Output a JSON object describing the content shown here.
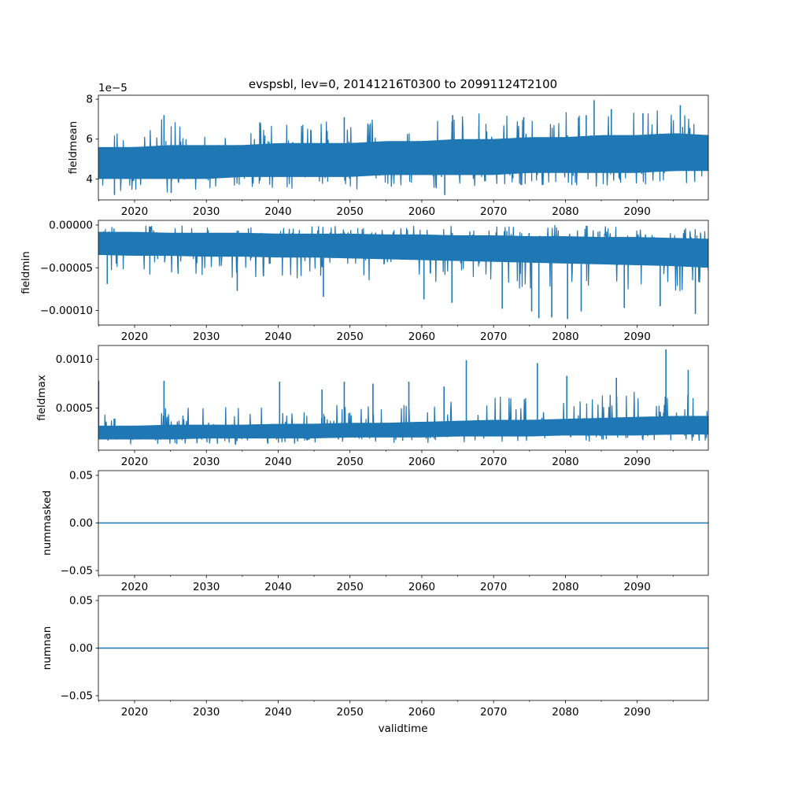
{
  "figure": {
    "title": "evspsbl, lev=0, 20141216T0300 to 20991124T2100",
    "xlabel": "validtime"
  },
  "colors": {
    "series": "#1f77b4",
    "axes": "#000000",
    "background": "#ffffff"
  },
  "chart_data": [
    {
      "type": "line",
      "name": "fieldmean",
      "ylabel": "fieldmean",
      "offset_text": "1e−5",
      "xlim": [
        2014.96,
        2099.9
      ],
      "ylim": [
        2.95e-05,
        8.2e-05
      ],
      "yticks": [
        4e-05,
        6e-05,
        8e-05
      ],
      "ytick_labels": [
        "4",
        "6",
        "8"
      ],
      "xticks": [
        2020,
        2030,
        2040,
        2050,
        2060,
        2070,
        2080,
        2090
      ],
      "xtick_labels": [
        "2020",
        "2030",
        "2040",
        "2050",
        "2060",
        "2070",
        "2080",
        "2090"
      ],
      "envelope": {
        "x": [
          2015,
          2020,
          2025,
          2030,
          2035,
          2040,
          2045,
          2050,
          2055,
          2060,
          2065,
          2070,
          2075,
          2080,
          2085,
          2090,
          2095,
          2099.9
        ],
        "upper": [
          6.6e-05,
          6.7e-05,
          7.1e-05,
          6.8e-05,
          6.9e-05,
          7e-05,
          6.9e-05,
          7.1e-05,
          7e-05,
          7.2e-05,
          7.3e-05,
          7.3e-05,
          7.4e-05,
          7.4e-05,
          7.5e-05,
          7.5e-05,
          7.6e-05,
          7.3e-05
        ],
        "lower": [
          3.3e-05,
          3.4e-05,
          3.3e-05,
          3.4e-05,
          3.5e-05,
          3.4e-05,
          3.5e-05,
          3.4e-05,
          3.5e-05,
          3.4e-05,
          3.5e-05,
          3.6e-05,
          3.6e-05,
          3.6e-05,
          3.6e-05,
          3.6e-05,
          3.7e-05,
          3.8e-05
        ],
        "core_upper": [
          5.6e-05,
          5.6e-05,
          5.7e-05,
          5.7e-05,
          5.7e-05,
          5.8e-05,
          5.8e-05,
          5.8e-05,
          5.9e-05,
          5.9e-05,
          6e-05,
          6e-05,
          6.1e-05,
          6.1e-05,
          6.2e-05,
          6.2e-05,
          6.3e-05,
          6.2e-05
        ],
        "core_lower": [
          4e-05,
          4e-05,
          4e-05,
          4e-05,
          4.1e-05,
          4.1e-05,
          4.1e-05,
          4.1e-05,
          4.2e-05,
          4.2e-05,
          4.2e-05,
          4.2e-05,
          4.3e-05,
          4.3e-05,
          4.3e-05,
          4.3e-05,
          4.4e-05,
          4.4e-05
        ]
      },
      "spikes": [
        {
          "x": 2084.0,
          "y": 7.95e-05
        },
        {
          "x": 2096.0,
          "y": 7.7e-05
        },
        {
          "x": 2086.4,
          "y": 7.5e-05
        },
        {
          "x": 2082.9,
          "y": 7.2e-05
        },
        {
          "x": 2090.8,
          "y": 7.3e-05
        },
        {
          "x": 2074.2,
          "y": 7.1e-05
        },
        {
          "x": 2064.3,
          "y": 7.2e-05
        },
        {
          "x": 2024.1,
          "y": 7.2e-05
        },
        {
          "x": 2049.2,
          "y": 7.1e-05
        },
        {
          "x": 2063.2,
          "y": 3.2e-05
        },
        {
          "x": 2017.2,
          "y": 3.2e-05
        },
        {
          "x": 2025.1,
          "y": 3.3e-05
        }
      ]
    },
    {
      "type": "line",
      "name": "fieldmin",
      "ylabel": "fieldmin",
      "xlim": [
        2014.96,
        2099.9
      ],
      "ylim": [
        -0.000117,
        5.5e-06
      ],
      "yticks": [
        0.0,
        -5e-05,
        -0.0001
      ],
      "ytick_labels": [
        "0.00000",
        "−0.00005",
        "−0.00010"
      ],
      "xticks": [
        2020,
        2030,
        2040,
        2050,
        2060,
        2070,
        2080,
        2090
      ],
      "xtick_labels": [
        "2020",
        "2030",
        "2040",
        "2050",
        "2060",
        "2070",
        "2080",
        "2090"
      ],
      "envelope": {
        "x": [
          2015,
          2020,
          2025,
          2030,
          2035,
          2040,
          2045,
          2050,
          2055,
          2060,
          2065,
          2070,
          2075,
          2080,
          2085,
          2090,
          2095,
          2099.9
        ],
        "upper": [
          0.0,
          0.0,
          0.0,
          0.0,
          0.0,
          0.0,
          0.0,
          0.0,
          0.0,
          0.0,
          0.0,
          0.0,
          0.0,
          0.0,
          -1e-06,
          -2e-06,
          -3e-06,
          -5e-06
        ],
        "lower": [
          -5.8e-05,
          -6e-05,
          -5.8e-05,
          -6e-05,
          -6.3e-05,
          -6.2e-05,
          -6.4e-05,
          -6.5e-05,
          -6.6e-05,
          -6.8e-05,
          -7e-05,
          -7.2e-05,
          -7.5e-05,
          -7.5e-05,
          -7.6e-05,
          -7.8e-05,
          -7.8e-05,
          -8.2e-05
        ],
        "core_upper": [
          -8e-06,
          -8e-06,
          -9e-06,
          -9e-06,
          -9e-06,
          -1e-05,
          -1e-05,
          -1e-05,
          -1.1e-05,
          -1.1e-05,
          -1.2e-05,
          -1.2e-05,
          -1.3e-05,
          -1.3e-05,
          -1.4e-05,
          -1.4e-05,
          -1.5e-05,
          -1.6e-05
        ],
        "core_lower": [
          -3.5e-05,
          -3.6e-05,
          -3.6e-05,
          -3.7e-05,
          -3.7e-05,
          -3.8e-05,
          -3.8e-05,
          -3.9e-05,
          -4e-05,
          -4.1e-05,
          -4.2e-05,
          -4.3e-05,
          -4.4e-05,
          -4.5e-05,
          -4.6e-05,
          -4.7e-05,
          -4.8e-05,
          -5e-05
        ]
      },
      "spikes": [
        {
          "x": 2016.2,
          "y": -6.9e-05
        },
        {
          "x": 2034.3,
          "y": -7.7e-05
        },
        {
          "x": 2046.3,
          "y": -8.4e-05
        },
        {
          "x": 2060.3,
          "y": -8.7e-05
        },
        {
          "x": 2064.2,
          "y": -9.1e-05
        },
        {
          "x": 2071.2,
          "y": -9.8e-05
        },
        {
          "x": 2075.3,
          "y": -0.000101
        },
        {
          "x": 2076.3,
          "y": -0.000109
        },
        {
          "x": 2078.1,
          "y": -0.000108
        },
        {
          "x": 2080.3,
          "y": -0.00011
        },
        {
          "x": 2082.2,
          "y": -0.000101
        },
        {
          "x": 2088.2,
          "y": -9.7e-05
        },
        {
          "x": 2093.2,
          "y": -9.5e-05
        },
        {
          "x": 2098.1,
          "y": -0.000104
        }
      ]
    },
    {
      "type": "line",
      "name": "fieldmax",
      "ylabel": "fieldmax",
      "xlim": [
        2014.96,
        2099.9
      ],
      "ylim": [
        7e-05,
        0.00114
      ],
      "yticks": [
        0.0005,
        0.001
      ],
      "ytick_labels": [
        "0.0005",
        "0.0010"
      ],
      "xticks": [
        2020,
        2030,
        2040,
        2050,
        2060,
        2070,
        2080,
        2090
      ],
      "xtick_labels": [
        "2020",
        "2030",
        "2040",
        "2050",
        "2060",
        "2070",
        "2080",
        "2090"
      ],
      "envelope": {
        "x": [
          2015,
          2020,
          2025,
          2030,
          2035,
          2040,
          2045,
          2050,
          2055,
          2060,
          2065,
          2070,
          2075,
          2080,
          2085,
          2090,
          2095,
          2099.9
        ],
        "upper": [
          0.00048,
          0.0005,
          0.00052,
          0.00051,
          0.00052,
          0.00053,
          0.00054,
          0.00055,
          0.00057,
          0.00058,
          0.0006,
          0.00062,
          0.00064,
          0.00063,
          0.00066,
          0.00067,
          0.00068,
          0.0006
        ],
        "lower": [
          0.000125,
          0.000125,
          0.00013,
          0.00013,
          0.00013,
          0.000135,
          0.000135,
          0.00014,
          0.00014,
          0.00014,
          0.000145,
          0.000145,
          0.00015,
          0.00015,
          0.000155,
          0.000155,
          0.00016,
          0.00016
        ],
        "core_upper": [
          0.00032,
          0.00032,
          0.00033,
          0.00033,
          0.00033,
          0.00034,
          0.00034,
          0.00035,
          0.00035,
          0.00036,
          0.00037,
          0.00038,
          0.00038,
          0.00039,
          0.0004,
          0.00041,
          0.00042,
          0.00042
        ],
        "core_lower": [
          0.00018,
          0.00018,
          0.00018,
          0.00019,
          0.00019,
          0.00019,
          0.00019,
          0.0002,
          0.0002,
          0.0002,
          0.00021,
          0.00021,
          0.00021,
          0.00022,
          0.00022,
          0.00022,
          0.00023,
          0.00023
        ]
      },
      "spikes": [
        {
          "x": 2015.0,
          "y": 0.00078
        },
        {
          "x": 2024.1,
          "y": 0.00078
        },
        {
          "x": 2040.2,
          "y": 0.00077
        },
        {
          "x": 2046.1,
          "y": 0.00069
        },
        {
          "x": 2049.2,
          "y": 0.00077
        },
        {
          "x": 2053.2,
          "y": 0.00075
        },
        {
          "x": 2058.2,
          "y": 0.00077
        },
        {
          "x": 2063.1,
          "y": 0.00072
        },
        {
          "x": 2066.2,
          "y": 0.00099
        },
        {
          "x": 2076.1,
          "y": 0.00096
        },
        {
          "x": 2080.2,
          "y": 0.00083
        },
        {
          "x": 2087.1,
          "y": 0.00081
        },
        {
          "x": 2094.0,
          "y": 0.0011
        },
        {
          "x": 2097.1,
          "y": 0.00089
        }
      ]
    },
    {
      "type": "line",
      "name": "nummasked",
      "ylabel": "nummasked",
      "xlim": [
        2014.96,
        2099.9
      ],
      "ylim": [
        -0.055,
        0.055
      ],
      "yticks": [
        0.05,
        0.0,
        -0.05
      ],
      "ytick_labels": [
        "0.05",
        "0.00",
        "−0.05"
      ],
      "xticks": [
        2020,
        2030,
        2040,
        2050,
        2060,
        2070,
        2080,
        2090
      ],
      "xtick_labels": [
        "2020",
        "2030",
        "2040",
        "2050",
        "2060",
        "2070",
        "2080",
        "2090"
      ],
      "x": [
        2014.96,
        2099.9
      ],
      "y": [
        0,
        0
      ]
    },
    {
      "type": "line",
      "name": "numnan",
      "ylabel": "numnan",
      "xlim": [
        2014.96,
        2099.9
      ],
      "ylim": [
        -0.055,
        0.055
      ],
      "yticks": [
        0.05,
        0.0,
        -0.05
      ],
      "ytick_labels": [
        "0.05",
        "0.00",
        "−0.05"
      ],
      "xticks": [
        2020,
        2030,
        2040,
        2050,
        2060,
        2070,
        2080,
        2090
      ],
      "xtick_labels": [
        "2020",
        "2030",
        "2040",
        "2050",
        "2060",
        "2070",
        "2080",
        "2090"
      ],
      "x": [
        2014.96,
        2099.9
      ],
      "y": [
        0,
        0
      ]
    }
  ]
}
